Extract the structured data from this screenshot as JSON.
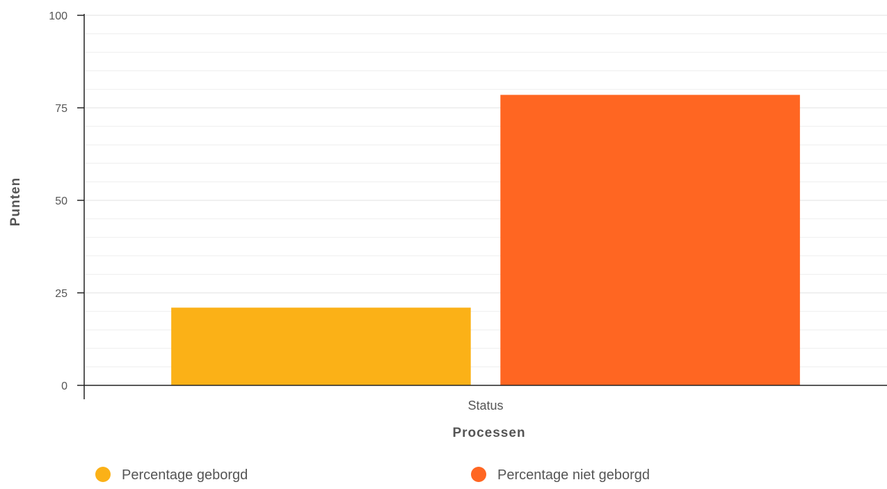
{
  "chart_data": {
    "type": "bar",
    "title": "",
    "xlabel": "Processen",
    "ylabel": "Punten",
    "categories": [
      "Status"
    ],
    "ylim": [
      0,
      100
    ],
    "yticks": [
      0,
      25,
      50,
      75,
      100
    ],
    "minor_grid_step": 5,
    "grid": true,
    "legend_position": "bottom",
    "series": [
      {
        "name": "Percentage geborgd",
        "values": [
          21
        ],
        "color": "#FBB117"
      },
      {
        "name": "Percentage niet geborgd",
        "values": [
          78.5
        ],
        "color": "#FF6622"
      }
    ]
  }
}
